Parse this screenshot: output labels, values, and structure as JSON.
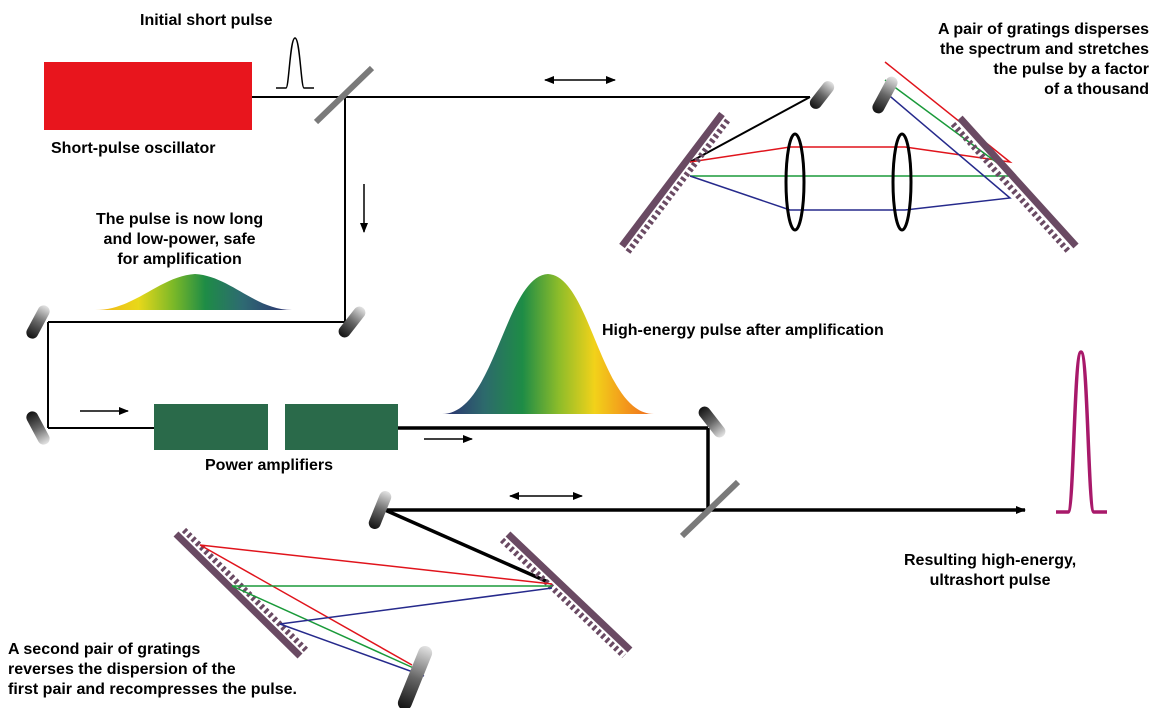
{
  "labels": {
    "initial_pulse": "Initial short pulse",
    "oscillator": "Short-pulse oscillator",
    "stretcher": "A pair of gratings disperses\nthe spectrum and stretches\nthe pulse by a factor\nof a thousand",
    "long_pulse": "The pulse is now long\nand low-power, safe\nfor amplification",
    "high_energy": "High-energy pulse after amplification",
    "amplifiers": "Power amplifiers",
    "result": "Resulting high-energy,\nultrashort pulse",
    "compressor": "A second pair of gratings\nreverses the dispersion of the\nfirst pair and recompresses the pulse."
  },
  "colors": {
    "oscillator": "#e8151d",
    "amplifier": "#2a6a4a",
    "grating": "#6a4a63",
    "ray_red": "#e0141c",
    "ray_green": "#1a9a3a",
    "ray_blue": "#262a8c",
    "output_pulse": "#a8196a"
  }
}
